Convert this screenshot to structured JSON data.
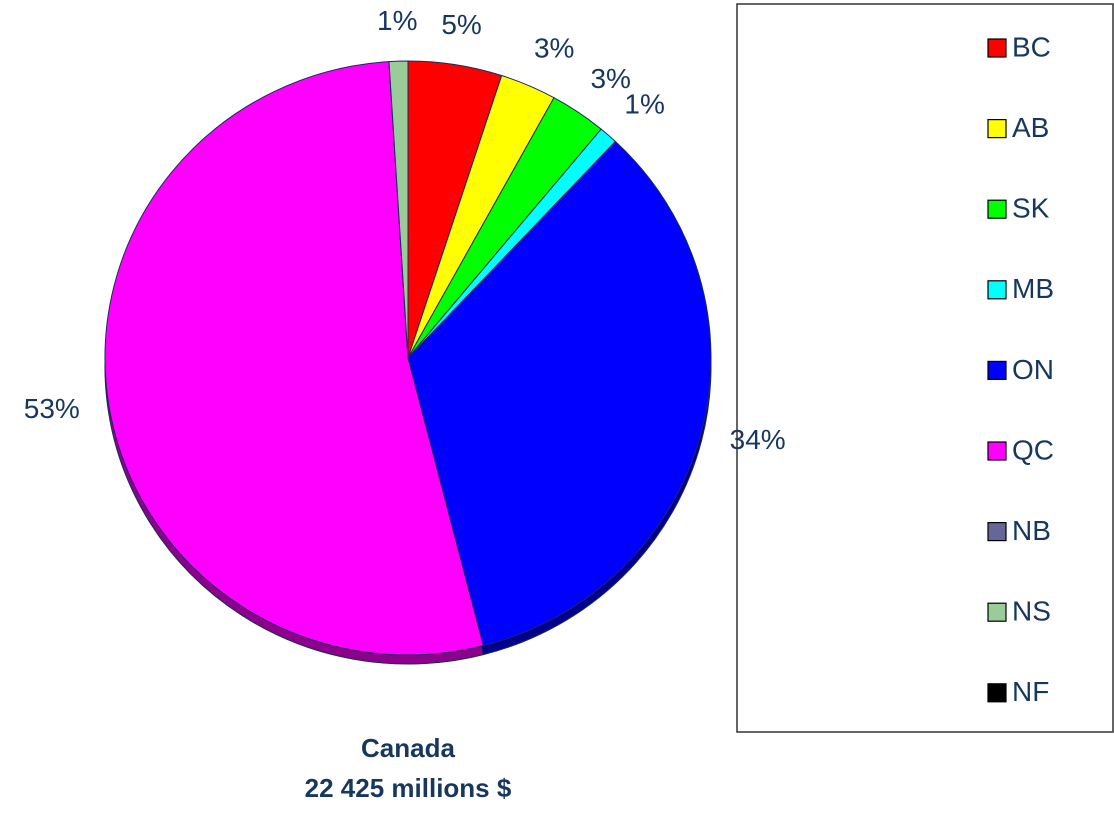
{
  "chart_data": {
    "type": "pie",
    "title": "Canada",
    "subtitle": "22 425 millions $",
    "categories": [
      "BC",
      "AB",
      "SK",
      "MB",
      "ON",
      "QC",
      "NB",
      "NS",
      "NF"
    ],
    "values": [
      5,
      3,
      3,
      1,
      34,
      53,
      0,
      1,
      0
    ],
    "value_labels": [
      "5%",
      "3%",
      "3%",
      "1%",
      "34%",
      "53%",
      null,
      "1%",
      null
    ],
    "colors": [
      "#ff0000",
      "#ffff00",
      "#00ff00",
      "#00ffff",
      "#0000ff",
      "#ff00ff",
      "#666699",
      "#99cc99",
      "#000000"
    ],
    "legend": "right"
  }
}
